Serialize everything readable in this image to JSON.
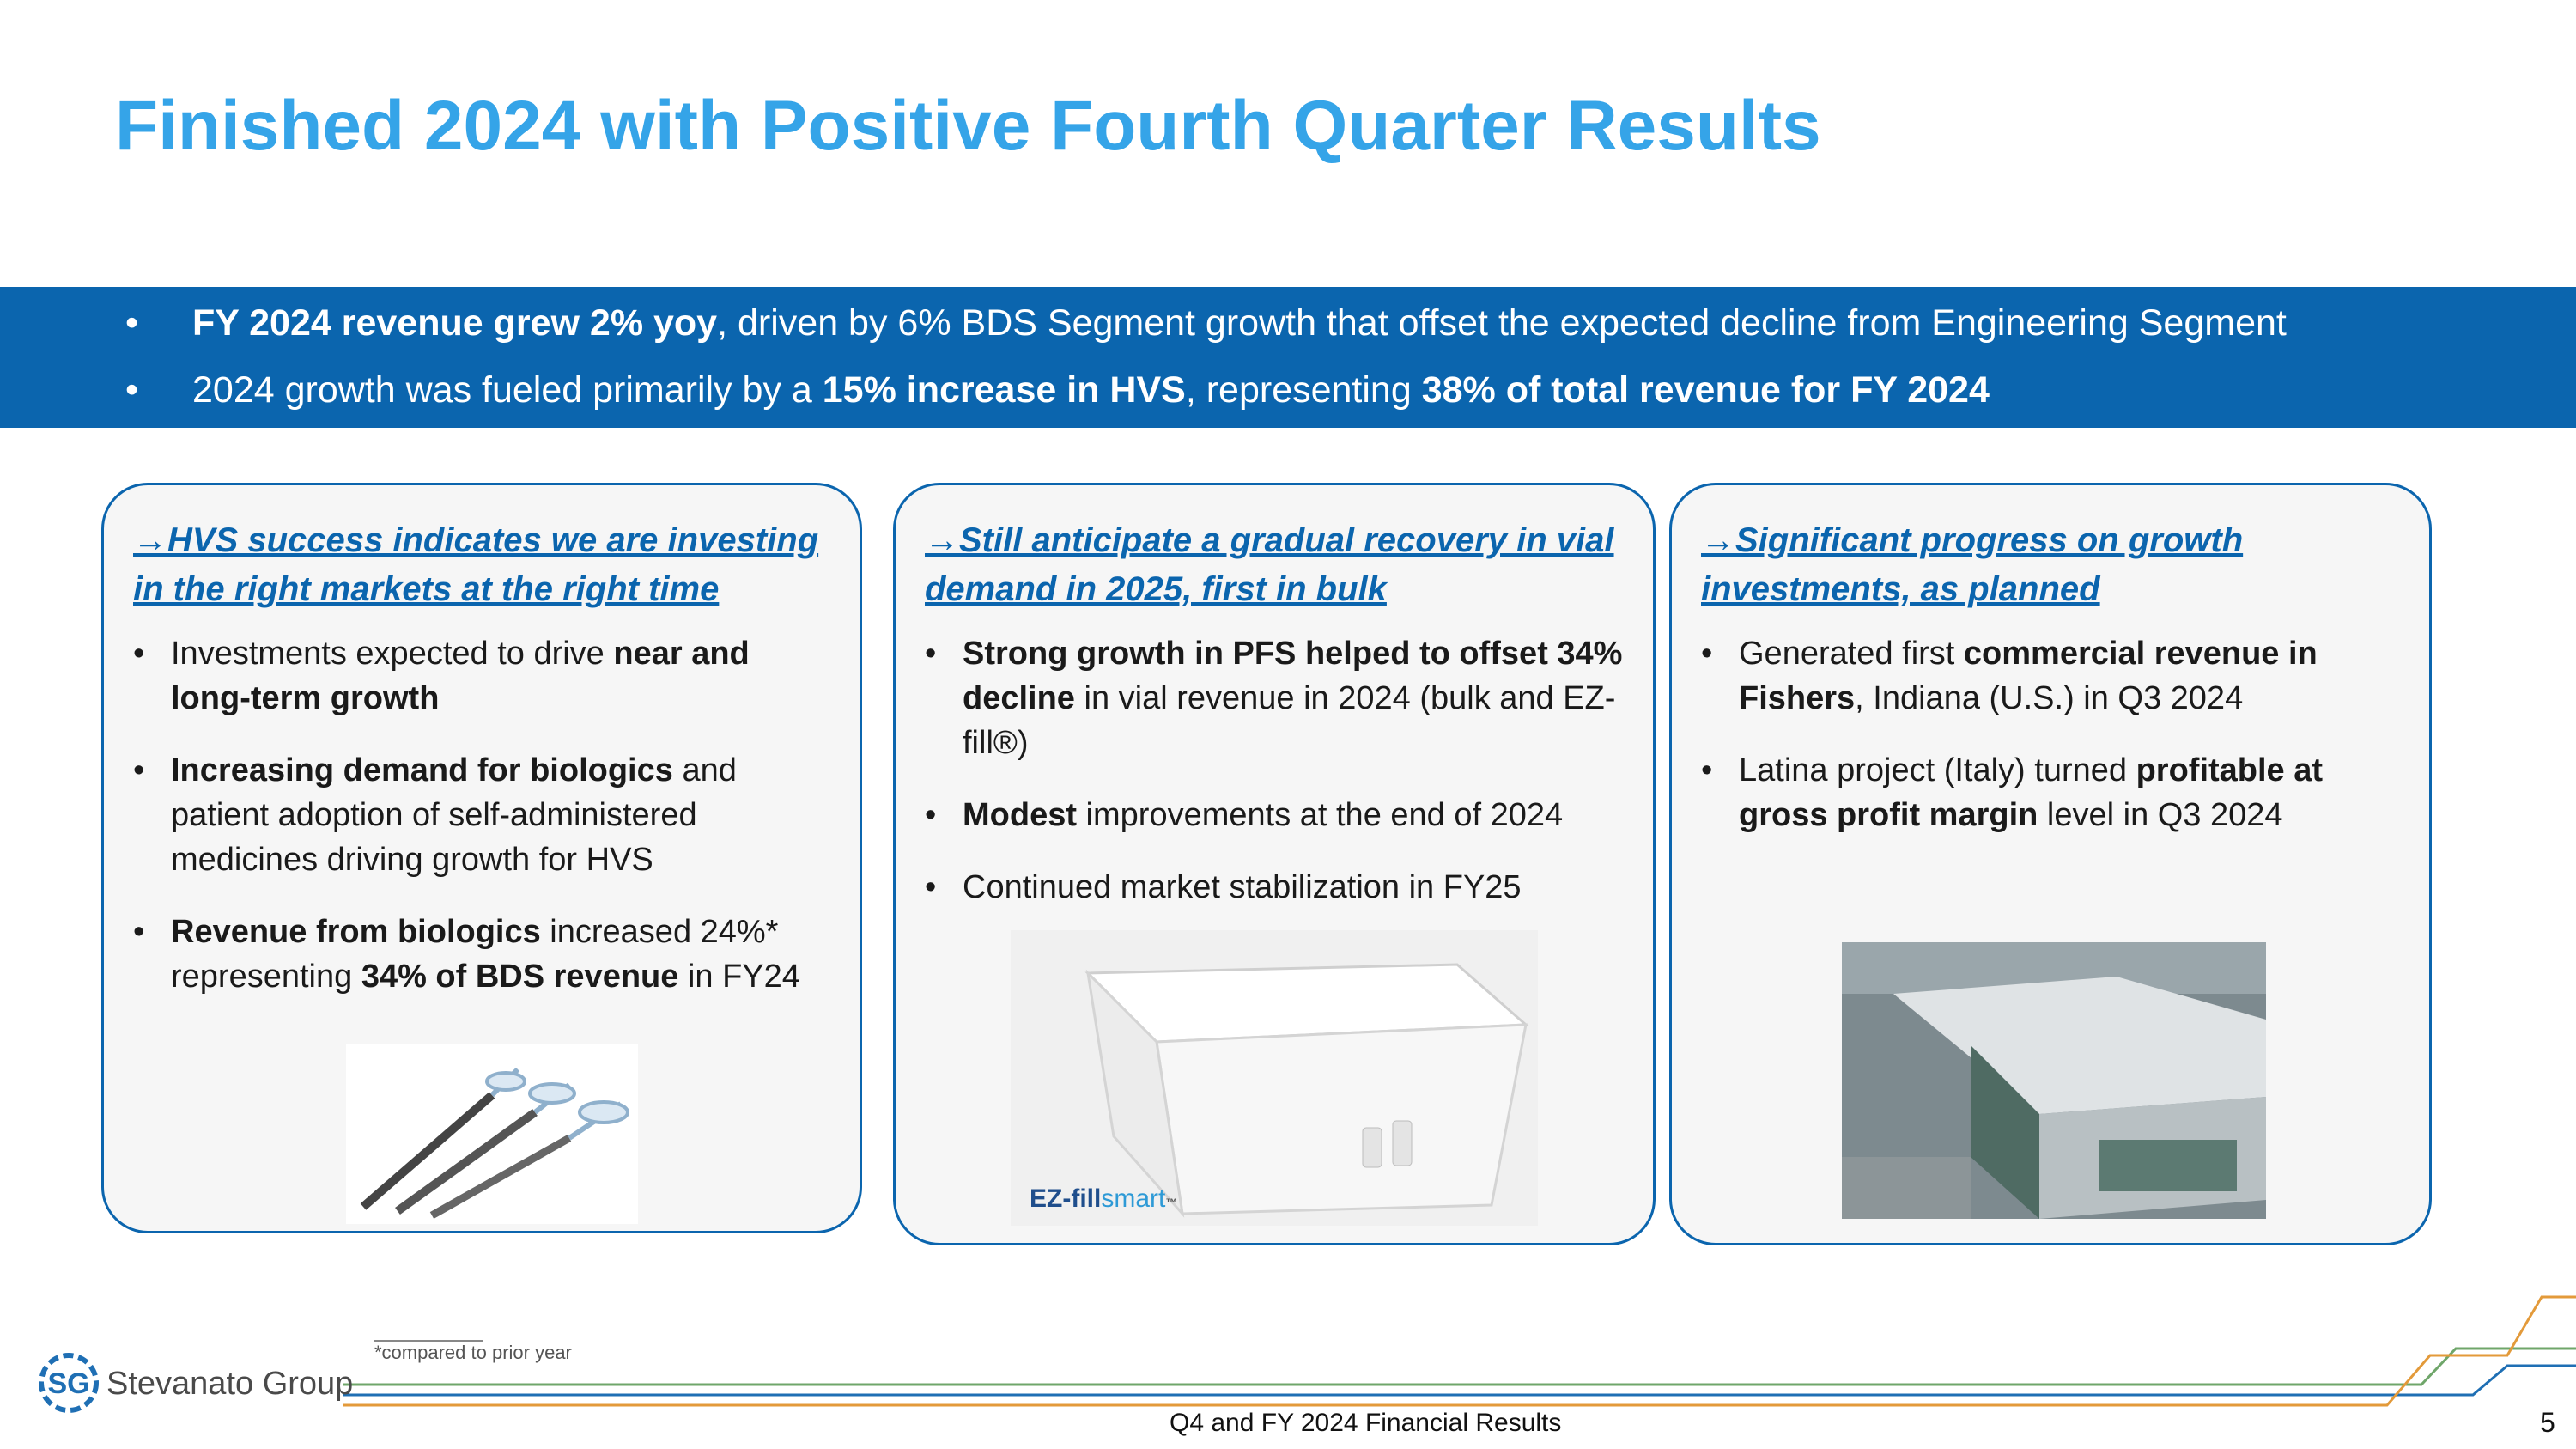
{
  "title": "Finished 2024 with Positive Fourth Quarter Results",
  "banner": {
    "bullet": "•",
    "line1_bold": "FY 2024 revenue grew 2% yoy",
    "line1_rest": ", driven by 6% BDS Segment growth that offset the expected decline from Engineering Segment",
    "line2_a": "2024 growth was fueled primarily by a ",
    "line2_b": "15% increase in HVS",
    "line2_c": ", representing ",
    "line2_d": "38% of total revenue for FY 2024"
  },
  "cards": [
    {
      "heading": "→HVS success indicates we are investing in the right markets at the right time",
      "bullets": [
        {
          "a": "Investments expected to drive ",
          "b": "near and long-term growth",
          "c": ""
        },
        {
          "a": "",
          "b": "Increasing demand for biologics",
          "c": " and patient adoption of self-administered medicines driving growth for HVS"
        },
        {
          "a": "",
          "b": "Revenue from biologics",
          "c": " increased 24%* representing ",
          "d": "34% of BDS revenue",
          "e": " in FY24"
        }
      ]
    },
    {
      "heading": "→Still anticipate a gradual recovery in vial demand in 2025, first in bulk",
      "bullets": [
        {
          "a": "",
          "b": "Strong growth in PFS helped to offset 34% decline",
          "c": " in vial revenue in 2024 (bulk and EZ-fill®)"
        },
        {
          "a": "",
          "b": "Modest",
          "c": " improvements at the end of 2024"
        },
        {
          "a": "Continued market stabilization in FY25",
          "b": "",
          "c": ""
        }
      ],
      "image_label_a": "EZ-fill",
      "image_label_b": "smart",
      "image_label_tm": "™"
    },
    {
      "heading": "→Significant progress on growth investments, as planned",
      "bullets": [
        {
          "a": "Generated first ",
          "b": "commercial revenue in Fishers",
          "c": ", Indiana (U.S.) in Q3 2024"
        },
        {
          "a": "Latina project (Italy) turned ",
          "b": "profitable at gross profit margin",
          "c": " level in Q3 2024"
        }
      ]
    }
  ],
  "footnote": "*compared to prior year",
  "footer_title": "Q4 and FY 2024 Financial Results",
  "page_number": "5",
  "logo_text": "Stevanato Group",
  "logo_mark": "SG",
  "colors": {
    "title": "#35a4e8",
    "banner": "#0b65ae",
    "card_border": "#0b65ae"
  }
}
